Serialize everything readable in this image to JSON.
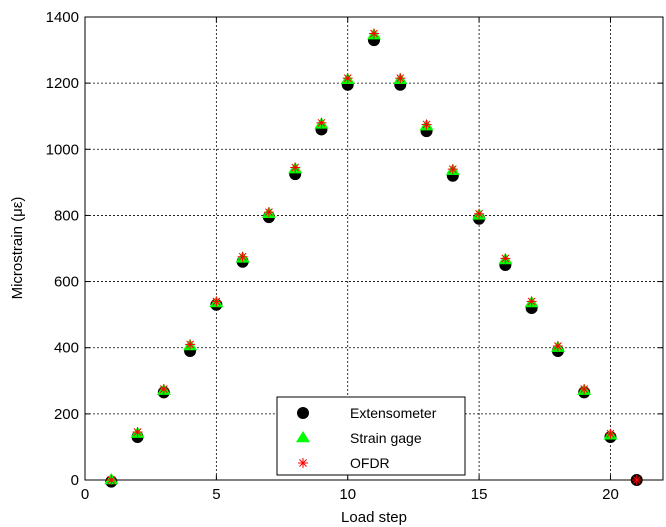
{
  "chart_data": {
    "type": "scatter",
    "xlabel": "Load step",
    "ylabel": "Microstrain (με)",
    "xlim": [
      0,
      22
    ],
    "ylim": [
      0,
      1400
    ],
    "xticks": [
      0,
      5,
      10,
      15,
      20
    ],
    "yticks": [
      0,
      200,
      400,
      600,
      800,
      1000,
      1200,
      1400
    ],
    "grid": true,
    "legend_position": "bottom-center",
    "series": [
      {
        "name": "Extensometer",
        "marker": "circle",
        "color": "#000000",
        "x": [
          1,
          2,
          3,
          4,
          5,
          6,
          7,
          8,
          9,
          10,
          11,
          12,
          13,
          14,
          15,
          16,
          17,
          18,
          19,
          20,
          21
        ],
        "y": [
          -5,
          130,
          265,
          390,
          530,
          660,
          795,
          925,
          1060,
          1195,
          1330,
          1195,
          1055,
          920,
          790,
          650,
          520,
          390,
          265,
          130,
          0
        ]
      },
      {
        "name": "Strain gage",
        "marker": "triangle",
        "color": "#00ff00",
        "x": [
          1,
          2,
          3,
          4,
          5,
          6,
          7,
          8,
          9,
          10,
          11,
          12,
          13,
          14,
          15,
          16,
          17,
          18,
          19,
          20
        ],
        "y": [
          0,
          140,
          270,
          405,
          535,
          670,
          805,
          940,
          1075,
          1210,
          1345,
          1210,
          1070,
          935,
          800,
          665,
          535,
          400,
          270,
          135
        ]
      },
      {
        "name": "OFDR",
        "marker": "asterisk",
        "color": "#ff0000",
        "x": [
          1,
          2,
          3,
          4,
          5,
          6,
          7,
          8,
          9,
          10,
          11,
          12,
          13,
          14,
          15,
          16,
          17,
          18,
          19,
          20,
          21
        ],
        "y": [
          0,
          145,
          275,
          410,
          540,
          675,
          810,
          945,
          1080,
          1215,
          1350,
          1215,
          1075,
          940,
          805,
          670,
          540,
          405,
          275,
          140,
          0
        ]
      }
    ]
  }
}
